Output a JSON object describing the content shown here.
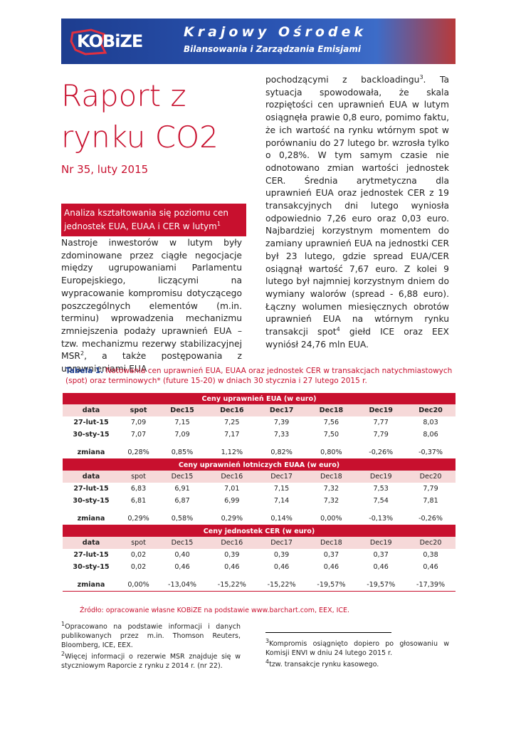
{
  "header": {
    "logo": "KOBiZE",
    "title": "Krajowy Ośrodek",
    "subtitle": "Bilansowania i Zarządzania Emisjami"
  },
  "report": {
    "title": "Raport z rynku CO2",
    "issue": "Nr 35, luty 2015"
  },
  "summary_box": {
    "text": "Analiza kształtowania się poziomu cen jednostek EUA, EUAA i CER w lutym",
    "footnote_ref": "1"
  },
  "body": {
    "left": [
      "Nastroje inwestorów w lutym były zdominowane przez ciągłe negocjacje między ugrupowaniami Parlamentu Europejskiego, liczącymi na wypracowanie kompromisu dotyczącego poszczególnych elementów (m.in. terminu) wprowadzenia mechanizmu zmniejszenia podaży uprawnień EUA – tzw. mechanizmu rezerwy stabilizacyjnej MSR",
      "2",
      ", a także postępowania z uprawnieniami EUA"
    ],
    "right": [
      "pochodzącymi z backloadingu",
      "3",
      ". Ta sytuacja spowodowała, że skala rozpiętości cen uprawnień EUA w lutym osiągnęła prawie 0,8 euro, pomimo faktu, że ich wartość na rynku wtórnym spot w porównaniu do 27 lutego br. wzrosła tylko o 0,28%. W tym samym czasie nie odnotowano zmian wartości jednostek CER. Średnia arytmetyczna dla uprawnień EUA oraz jednostek CER z 19 transakcyjnych dni lutego wyniosła odpowiednio 7,26 euro oraz 0,03 euro. Najbardziej korzystnym momentem do zamiany uprawnień EUA na jednostki CER był 23 lutego, gdzie spread EUA/CER osiągnął wartość 7,67 euro. Z kolei 9 lutego był najmniej korzystnym dniem do wymiany walorów (spread - 6,88 euro). Łączny wolumen miesięcznych obrotów uprawnień EUA na wtórnym rynku transakcji spot",
      "4",
      " giełd ICE oraz EEX wyniósł 24,76 mln EUA."
    ]
  },
  "table": {
    "caption_label": "Tabela 1.",
    "caption": "Notowania cen uprawnień EUA, EUAA oraz jednostek CER w transakcjach natychmiastowych (spot) oraz terminowych* (future 15-20) w dniach 30 stycznia i 27 lutego 2015 r.",
    "sections": [
      {
        "title": "Ceny uprawnień EUA (w euro)",
        "columns": [
          "data",
          "spot",
          "Dec15",
          "Dec16",
          "Dec17",
          "Dec18",
          "Dec19",
          "Dec20"
        ],
        "rows": [
          [
            "27-lut-15",
            "7,09",
            "7,15",
            "7,25",
            "7,39",
            "7,56",
            "7,77",
            "8,03"
          ],
          [
            "30-sty-15",
            "7,07",
            "7,09",
            "7,17",
            "7,33",
            "7,50",
            "7,79",
            "8,06"
          ]
        ],
        "change": [
          "zmiana",
          "0,28%",
          "0,85%",
          "1,12%",
          "0,82%",
          "0,80%",
          "-0,26%",
          "-0,37%"
        ]
      },
      {
        "title": "Ceny uprawnień lotniczych EUAA (w euro)",
        "columns": [
          "data",
          "spot",
          "Dec15",
          "Dec16",
          "Dec17",
          "Dec18",
          "Dec19",
          "Dec20"
        ],
        "rows": [
          [
            "27-lut-15",
            "6,83",
            "6,91",
            "7,01",
            "7,15",
            "7,32",
            "7,53",
            "7,79"
          ],
          [
            "30-sty-15",
            "6,81",
            "6,87",
            "6,99",
            "7,14",
            "7,32",
            "7,54",
            "7,81"
          ]
        ],
        "change": [
          "zmiana",
          "0,29%",
          "0,58%",
          "0,29%",
          "0,14%",
          "0,00%",
          "-0,13%",
          "-0,26%"
        ]
      },
      {
        "title": "Ceny jednostek CER (w euro)",
        "columns": [
          "data",
          "spot",
          "Dec15",
          "Dec16",
          "Dec17",
          "Dec18",
          "Dec19",
          "Dec20"
        ],
        "rows": [
          [
            "27-lut-15",
            "0,02",
            "0,40",
            "0,39",
            "0,39",
            "0,37",
            "0,37",
            "0,38"
          ],
          [
            "30-sty-15",
            "0,02",
            "0,46",
            "0,46",
            "0,46",
            "0,46",
            "0,46",
            "0,46"
          ]
        ],
        "change": [
          "zmiana",
          "0,00%",
          "-13,04%",
          "-15,22%",
          "-15,22%",
          "-19,57%",
          "-19,57%",
          "-17,39%"
        ]
      }
    ],
    "source": "Źródło: opracowanie własne KOBiZE na podstawie www.barchart.com, EEX, ICE."
  },
  "footnotes": [
    {
      "number": "1",
      "text": "Opracowano na podstawie informacji i danych publikowanych przez m.in. Thomson Reuters, Bloomberg, ICE, EEX."
    },
    {
      "number": "2",
      "text": "Więcej informacji o rezerwie MSR znajduje się w styczniowym Raporcie z rynku z 2014 r. (nr 22)."
    },
    {
      "number": "3",
      "text": "Kompromis osiągnięto dopiero po głosowaniu w Komisji ENVI w dniu 24 lutego 2015 r."
    },
    {
      "number": "4",
      "text": "tzw. transakcje rynku kasowego."
    }
  ]
}
